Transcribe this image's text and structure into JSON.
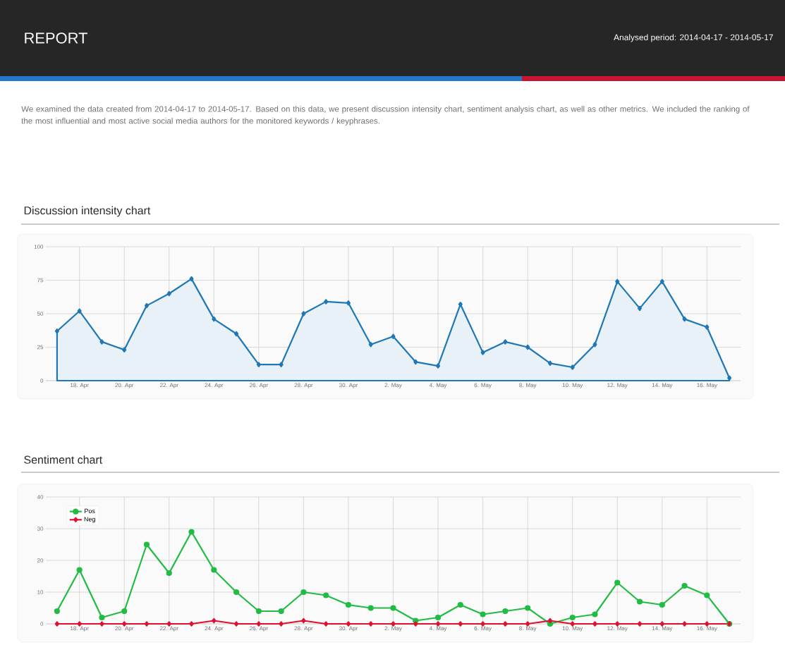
{
  "chart_data": [
    {
      "type": "area",
      "title": "Discussion intensity chart",
      "annotations": [
        "REPORT",
        "Analysed period: 2014-04-17 - 2014-05-17",
        "We examined the data created from 2014-04-17 to 2014-05-17. Based on this data, we present discussion intensity chart, sentiment analysis chart, as well as other metrics. We included the ranking of the most influential and most active social media authors for the monitored keywords / keyphrases."
      ],
      "categories": [
        null,
        "18. Apr",
        null,
        "20. Apr",
        null,
        "22. Apr",
        null,
        "24. Apr",
        null,
        "26. Apr",
        null,
        "28. Apr",
        null,
        "30. Apr",
        null,
        "2. May",
        null,
        "4. May",
        null,
        "6. May",
        null,
        "8. May",
        null,
        "10. May",
        null,
        "12. May",
        null,
        "14. May",
        null,
        "16. May",
        null
      ],
      "values": [
        37,
        52,
        29,
        23,
        56,
        65,
        76,
        46,
        35,
        12,
        12,
        50,
        59,
        58,
        27,
        33,
        14,
        11,
        57,
        21,
        29,
        25,
        13,
        10,
        27,
        74,
        54,
        74,
        46,
        40,
        2
      ],
      "color": "#1f77b4",
      "ylim": [
        0,
        100
      ],
      "yticks": [
        0,
        25,
        50,
        75,
        100
      ],
      "grid": true,
      "marker": "diamond"
    },
    {
      "type": "line",
      "title": "Sentiment chart",
      "categories": [
        null,
        "18. Apr",
        null,
        "20. Apr",
        null,
        "22. Apr",
        null,
        "24. Apr",
        null,
        "26. Apr",
        null,
        "28. Apr",
        null,
        "30. Apr",
        null,
        "2. May",
        null,
        "4. May",
        null,
        "6. May",
        null,
        "8. May",
        null,
        "10. May",
        null,
        "12. May",
        null,
        "14. May",
        null,
        "16. May",
        null
      ],
      "series": [
        {
          "name": "Pos",
          "color": "#22bb44",
          "marker": "circle",
          "values": [
            4,
            17,
            2,
            4,
            25,
            16,
            29,
            17,
            10,
            4,
            4,
            10,
            9,
            6,
            5,
            5,
            1,
            2,
            6,
            3,
            4,
            5,
            0,
            2,
            3,
            13,
            7,
            6,
            12,
            9,
            0
          ]
        },
        {
          "name": "Neg",
          "color": "#e01030",
          "marker": "diamond",
          "values": [
            0,
            0,
            0,
            0,
            0,
            0,
            0,
            1,
            0,
            0,
            0,
            1,
            0,
            0,
            0,
            0,
            0,
            0,
            0,
            0,
            0,
            0,
            1,
            0,
            0,
            0,
            0,
            0,
            0,
            0,
            0
          ]
        }
      ],
      "ylim": [
        0,
        40
      ],
      "yticks": [
        0,
        10,
        20,
        30,
        40
      ],
      "grid": true,
      "legend": "top left"
    }
  ]
}
